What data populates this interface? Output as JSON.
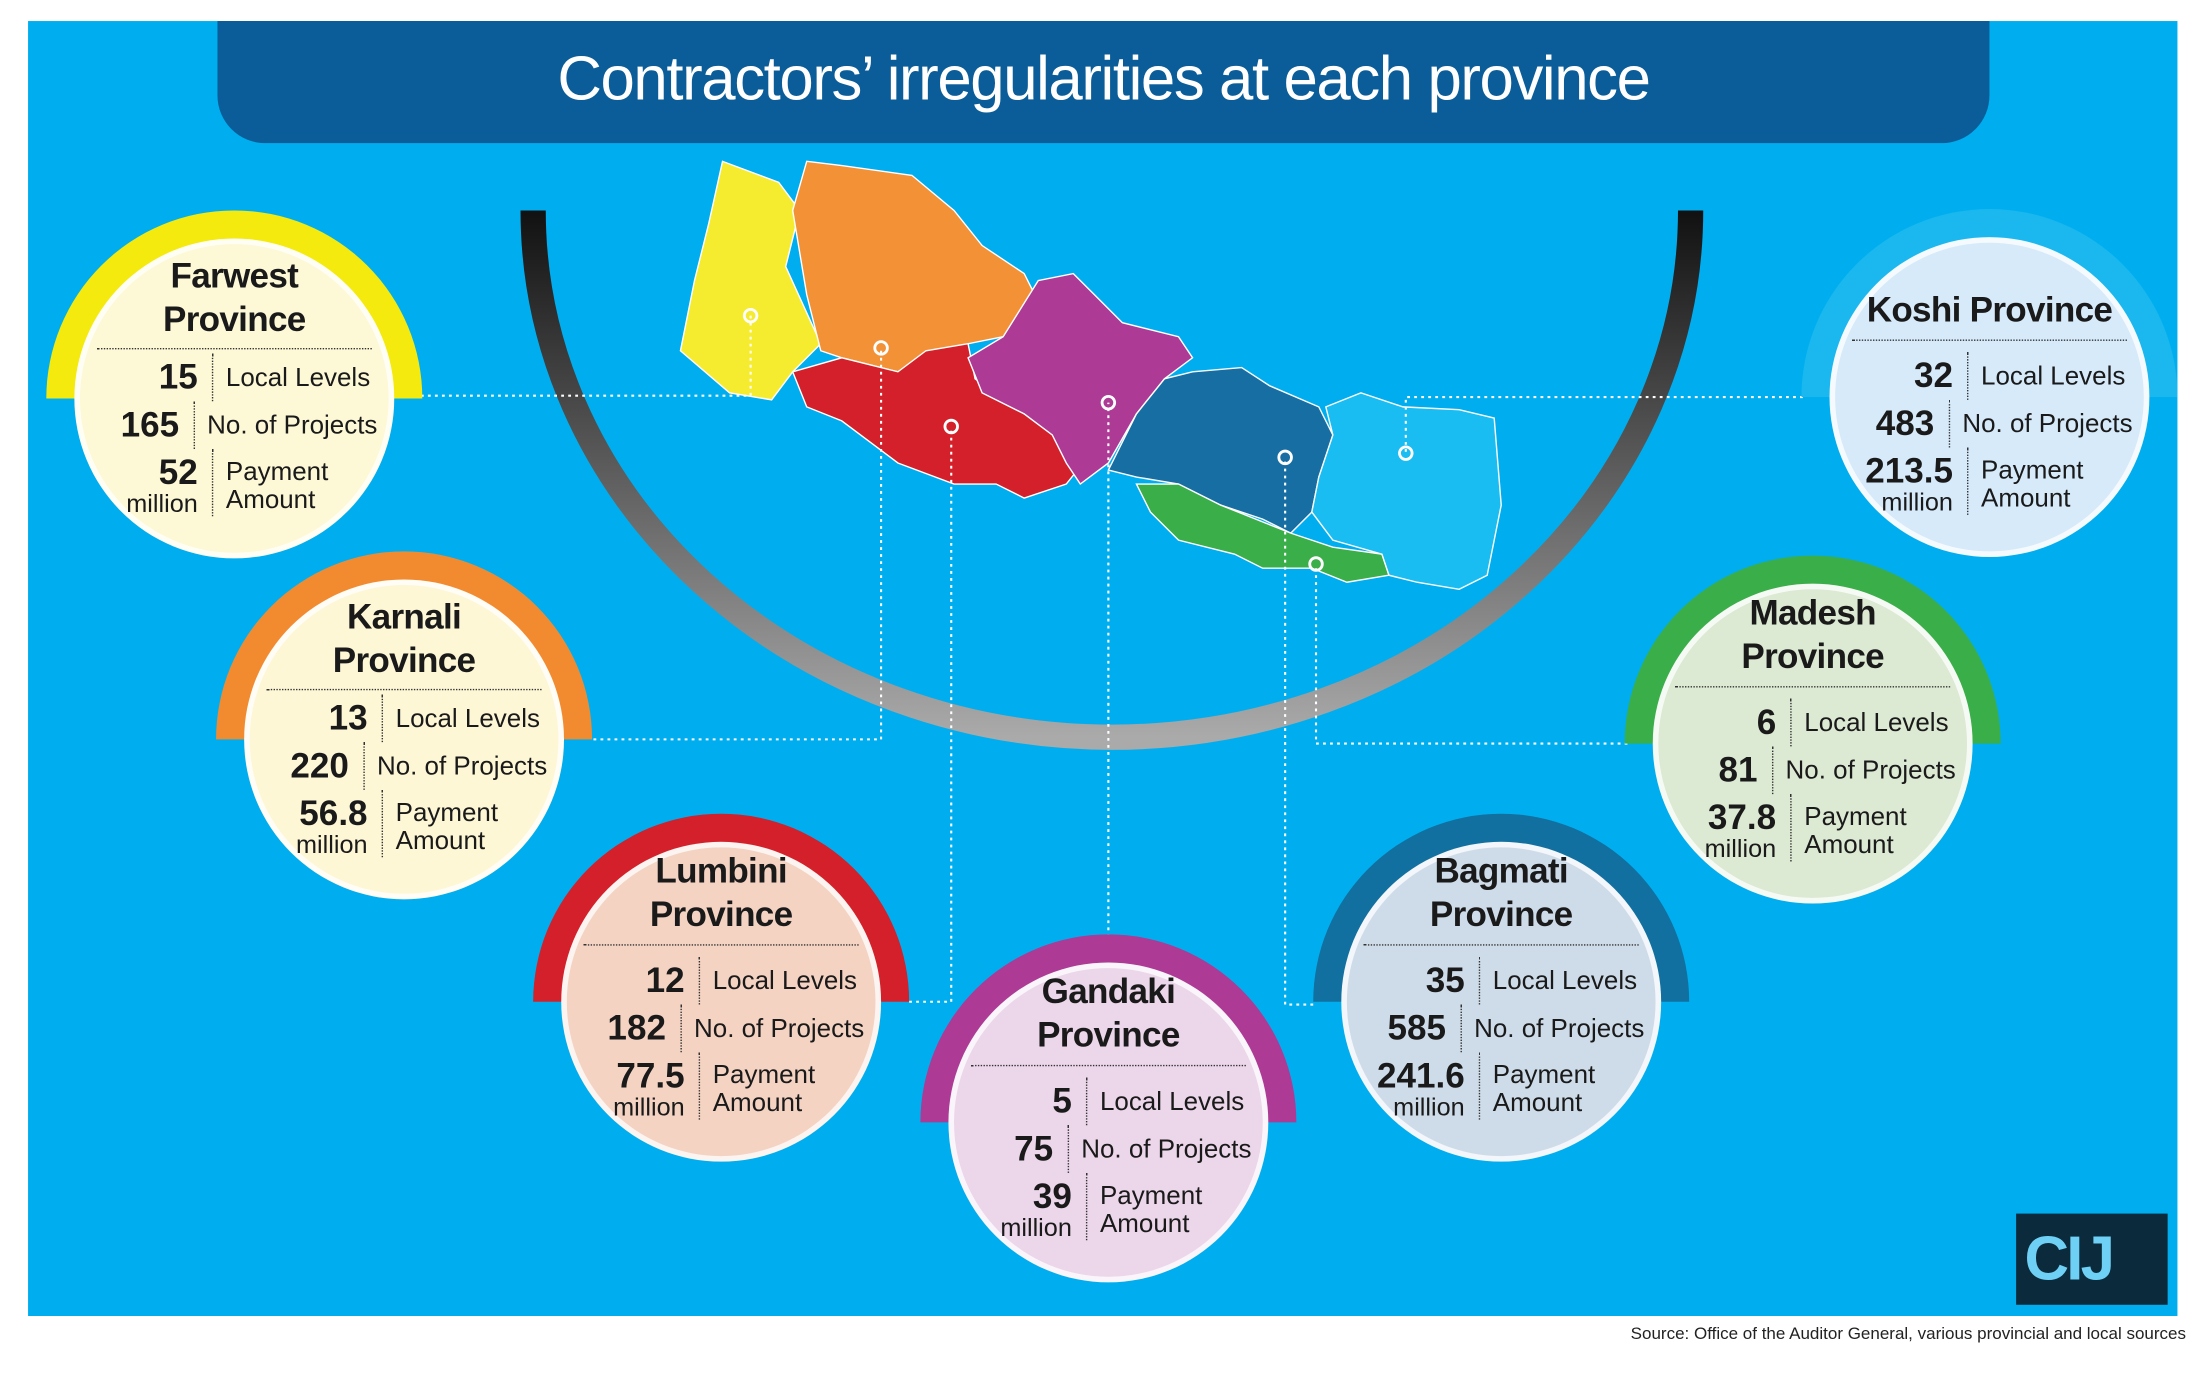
{
  "title": "Contractors’ irregularities at each province",
  "labels": {
    "local_levels": "Local Levels",
    "projects": "No. of Projects",
    "payment": "Payment Amount",
    "unit": "million"
  },
  "provinces": [
    {
      "name": "Farwest Province",
      "local_levels": 15,
      "projects": 165,
      "payment": 52
    },
    {
      "name": "Karnali Province",
      "local_levels": 13,
      "projects": 220,
      "payment": 56.8
    },
    {
      "name": "Lumbini Province",
      "local_levels": 12,
      "projects": 182,
      "payment": 77.5
    },
    {
      "name": "Gandaki Province",
      "local_levels": 5,
      "projects": 75,
      "payment": 39
    },
    {
      "name": "Bagmati Province",
      "local_levels": 35,
      "projects": 585,
      "payment": 241.6
    },
    {
      "name": "Madesh Province",
      "local_levels": 6,
      "projects": 81,
      "payment": 37.8
    },
    {
      "name": "Koshi Province",
      "local_levels": 32,
      "projects": 483,
      "payment": 213.5
    }
  ],
  "logo": "CIJ",
  "source": "Source: Office of the Auditor General, various provincial and local sources"
}
